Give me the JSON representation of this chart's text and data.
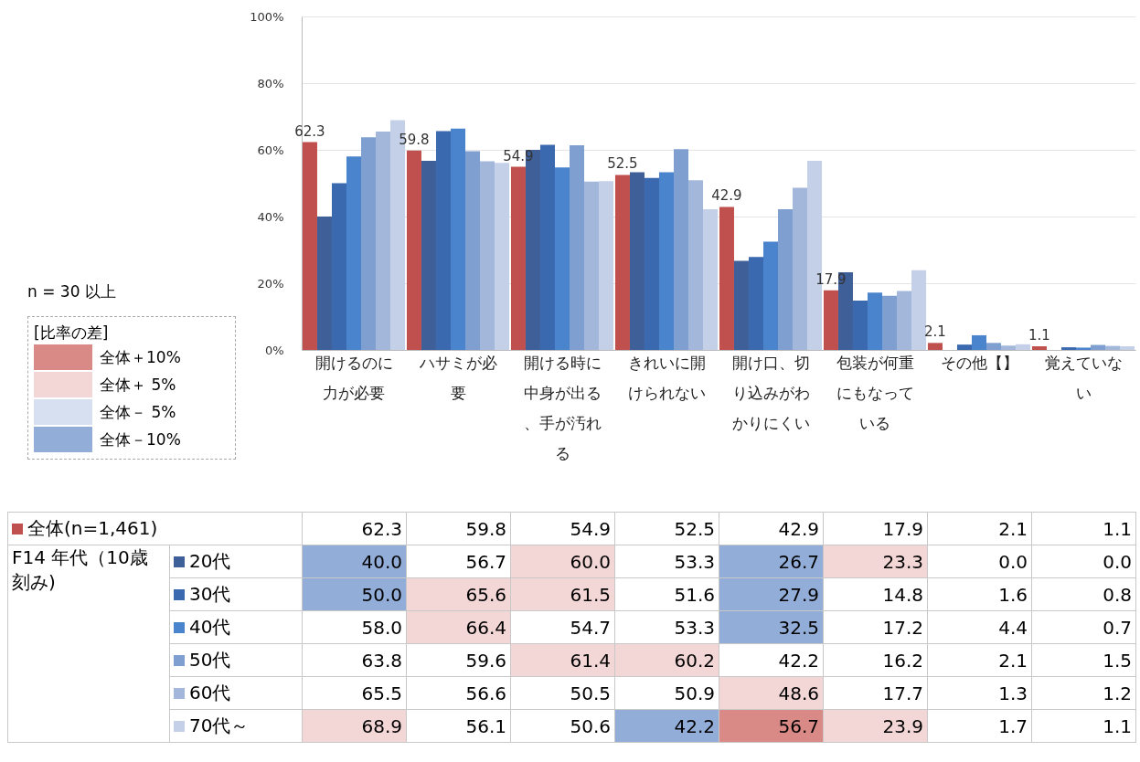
{
  "chart_data": {
    "type": "bar",
    "categories": [
      "開けるのに力が必要",
      "ハサミが必要",
      "開ける時に中身が出る、手が汚れる",
      "きれいに開けられない",
      "開け口、切り込みがわかりにくい",
      "包装が何重にもなっている",
      "その他【】",
      "覚えていない"
    ],
    "series": [
      {
        "name": "全体(n=1,461)",
        "color": "#c0504d",
        "values": [
          62.3,
          59.8,
          54.9,
          52.5,
          42.9,
          17.9,
          2.1,
          1.1
        ],
        "value_labels": [
          "62.3",
          "59.8",
          "54.9",
          "52.5",
          "42.9",
          "17.9",
          "2.1",
          "1.1"
        ]
      },
      {
        "name": "20代",
        "color": "#3f5f98",
        "values": [
          40.0,
          56.7,
          60.0,
          53.3,
          26.7,
          23.3,
          0.0,
          0.0
        ],
        "value_labels": [
          "40.0",
          "56.7",
          "60.0",
          "53.3",
          "26.7",
          "23.3",
          "0.0",
          "0.0"
        ]
      },
      {
        "name": "30代",
        "color": "#3b69b0",
        "values": [
          50.0,
          65.6,
          61.5,
          51.6,
          27.9,
          14.8,
          1.6,
          0.8
        ],
        "value_labels": [
          "50.0",
          "65.6",
          "61.5",
          "51.6",
          "27.9",
          "14.8",
          "1.6",
          "0.8"
        ]
      },
      {
        "name": "40代",
        "color": "#4a84cc",
        "values": [
          58.0,
          66.4,
          54.7,
          53.3,
          32.5,
          17.2,
          4.4,
          0.7
        ],
        "value_labels": [
          "58.0",
          "66.4",
          "54.7",
          "53.3",
          "32.5",
          "17.2",
          "4.4",
          "0.7"
        ]
      },
      {
        "name": "50代",
        "color": "#7f9fd0",
        "values": [
          63.8,
          59.6,
          61.4,
          60.2,
          42.2,
          16.2,
          2.1,
          1.5
        ],
        "value_labels": [
          "63.8",
          "59.6",
          "61.4",
          "60.2",
          "42.2",
          "16.2",
          "2.1",
          "1.5"
        ]
      },
      {
        "name": "60代",
        "color": "#a3b7db",
        "values": [
          65.5,
          56.6,
          50.5,
          50.9,
          48.6,
          17.7,
          1.3,
          1.2
        ],
        "value_labels": [
          "65.5",
          "56.6",
          "50.5",
          "50.9",
          "48.6",
          "17.7",
          "1.3",
          "1.2"
        ]
      },
      {
        "name": "70代～",
        "color": "#c3d0e8",
        "values": [
          68.9,
          56.1,
          50.6,
          42.2,
          56.7,
          23.9,
          1.7,
          1.1
        ],
        "value_labels": [
          "68.9",
          "56.1",
          "50.6",
          "42.2",
          "56.7",
          "23.9",
          "1.7",
          "1.1"
        ]
      }
    ],
    "ylim": [
      0,
      100
    ],
    "yticks": [
      {
        "value": 0,
        "label": "0%"
      },
      {
        "value": 20,
        "label": "20%"
      },
      {
        "value": 40,
        "label": "40%"
      },
      {
        "value": 60,
        "label": "60%"
      },
      {
        "value": 80,
        "label": "80%"
      },
      {
        "value": 100,
        "label": "100%"
      }
    ],
    "grid": "y",
    "legend": "bottom left",
    "legend_title": "[比率の差]",
    "annotations": [
      "n = 30 以上",
      "F14 年代（10歳刻み)",
      "全体＋10%",
      "全体＋ 5%",
      "全体－ 5%",
      "全体－10%"
    ]
  }
}
